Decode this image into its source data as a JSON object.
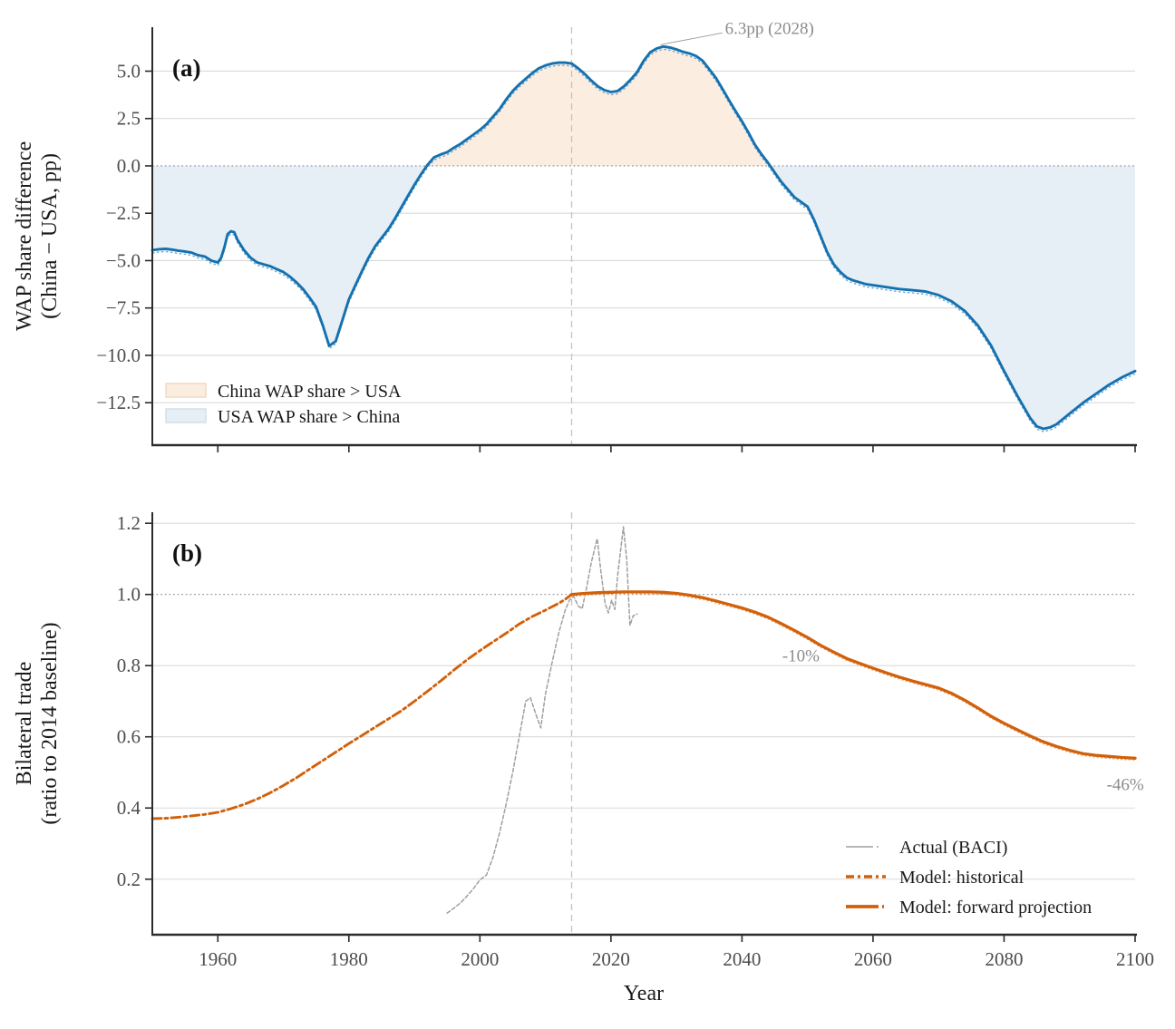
{
  "figure_title": "Two-panel demographic and trade projection figure",
  "palette": {
    "blue_line": "#1571ae",
    "blue_line_companion": "#6fa9d2",
    "fill_china_above": "#fcede1",
    "fill_usa_above": "#e6eef6",
    "fill_china_border": "#f5d8c2",
    "fill_usa_border": "#cfe0ee",
    "orange_line": "#d2600a",
    "orange_companion": "#eaa76f",
    "gray_actual": "#9f9f9f",
    "grid": "#dadada",
    "dotted_baseline": "#909090",
    "vline_2014": "#c4c4c4",
    "spine": "#2b2b2b",
    "annotation_text": "#8c8c8c"
  },
  "chart_data": [
    {
      "id": "panel_a",
      "type": "line",
      "panel_label": "(a)",
      "ylabel_lines": [
        "WAP share difference",
        "(China − USA, pp)"
      ],
      "xlim": [
        1950,
        2100
      ],
      "ylim": [
        -14.74,
        7.32
      ],
      "grid": "horizontal",
      "yticks": [
        {
          "v": 5.0,
          "label": "5.0",
          "grid": true
        },
        {
          "v": 2.5,
          "label": "2.5",
          "grid": true
        },
        {
          "v": 0.0,
          "label": "0.0",
          "grid": false
        },
        {
          "v": -2.5,
          "label": "−2.5",
          "grid": true
        },
        {
          "v": -5.0,
          "label": "−5.0",
          "grid": true
        },
        {
          "v": -7.5,
          "label": "−7.5",
          "grid": true
        },
        {
          "v": -10.0,
          "label": "−10.0",
          "grid": true
        },
        {
          "v": -12.5,
          "label": "−12.5",
          "grid": true
        }
      ],
      "xticks": [
        1960,
        1980,
        2000,
        2020,
        2040,
        2060,
        2080,
        2100
      ],
      "xtick_labels_shown": false,
      "dotted_baseline_value": 0.0,
      "vline_year": 2014,
      "series": [
        {
          "name": "wap-share-difference",
          "style": "blue-hatched",
          "x": [
            1950,
            1951,
            1952,
            1953,
            1954,
            1955,
            1956,
            1957,
            1958,
            1959,
            1960,
            1960.5,
            1961,
            1961.5,
            1962,
            1962.5,
            1963,
            1964,
            1965,
            1966,
            1967,
            1968,
            1969,
            1970,
            1971,
            1972,
            1973,
            1974,
            1975,
            1976,
            1977,
            1978,
            1979,
            1980,
            1981,
            1982,
            1983,
            1984,
            1985,
            1986,
            1987,
            1988,
            1989,
            1990,
            1991,
            1992,
            1993,
            1994,
            1995,
            1996,
            1997,
            1998,
            1999,
            2000,
            2001,
            2002,
            2003,
            2004,
            2005,
            2006,
            2007,
            2008,
            2009,
            2010,
            2011,
            2012,
            2013,
            2014,
            2015,
            2016,
            2017,
            2018,
            2019,
            2020,
            2021,
            2022,
            2023,
            2024,
            2025,
            2026,
            2027,
            2028,
            2029,
            2030,
            2031,
            2032,
            2033,
            2034,
            2035,
            2036,
            2037,
            2038,
            2039,
            2040,
            2041,
            2042,
            2043,
            2044,
            2045,
            2046,
            2047,
            2048,
            2049,
            2050,
            2051,
            2052,
            2053,
            2054,
            2055,
            2056,
            2057,
            2058,
            2059,
            2060,
            2062,
            2064,
            2066,
            2068,
            2070,
            2072,
            2074,
            2076,
            2078,
            2080,
            2082,
            2084,
            2085,
            2086,
            2087,
            2088,
            2090,
            2092,
            2094,
            2096,
            2098,
            2100
          ],
          "y": [
            -4.45,
            -4.4,
            -4.38,
            -4.42,
            -4.48,
            -4.52,
            -4.58,
            -4.72,
            -4.78,
            -5.0,
            -5.1,
            -4.85,
            -4.3,
            -3.6,
            -3.45,
            -3.5,
            -3.9,
            -4.45,
            -4.85,
            -5.1,
            -5.2,
            -5.3,
            -5.45,
            -5.6,
            -5.85,
            -6.15,
            -6.5,
            -6.95,
            -7.45,
            -8.4,
            -9.5,
            -9.25,
            -8.15,
            -7.05,
            -6.3,
            -5.55,
            -4.85,
            -4.25,
            -3.8,
            -3.35,
            -2.8,
            -2.2,
            -1.6,
            -1.0,
            -0.45,
            0.05,
            0.45,
            0.6,
            0.72,
            0.95,
            1.15,
            1.4,
            1.65,
            1.9,
            2.2,
            2.6,
            3.0,
            3.5,
            3.95,
            4.3,
            4.6,
            4.9,
            5.15,
            5.3,
            5.4,
            5.45,
            5.45,
            5.4,
            5.15,
            4.85,
            4.5,
            4.2,
            4.0,
            3.9,
            3.95,
            4.2,
            4.55,
            4.95,
            5.55,
            6.0,
            6.2,
            6.3,
            6.25,
            6.15,
            6.02,
            5.93,
            5.8,
            5.55,
            5.1,
            4.65,
            4.08,
            3.48,
            2.9,
            2.35,
            1.75,
            1.1,
            0.6,
            0.15,
            -0.35,
            -0.85,
            -1.25,
            -1.65,
            -1.9,
            -2.15,
            -2.85,
            -3.7,
            -4.55,
            -5.2,
            -5.6,
            -5.9,
            -6.05,
            -6.15,
            -6.25,
            -6.3,
            -6.4,
            -6.5,
            -6.56,
            -6.63,
            -6.82,
            -7.15,
            -7.66,
            -8.43,
            -9.47,
            -10.83,
            -12.12,
            -13.32,
            -13.75,
            -13.88,
            -13.8,
            -13.64,
            -13.08,
            -12.52,
            -12.04,
            -11.56,
            -11.16,
            -10.83
          ]
        }
      ],
      "legend": [
        {
          "label": "China WAP share > USA",
          "swatch": "china_above"
        },
        {
          "label": "USA WAP share > China",
          "swatch": "usa_above"
        }
      ],
      "annotations": [
        {
          "text": "6.3pp (2028)",
          "year": 2028,
          "value": 6.3,
          "leader": true
        }
      ]
    },
    {
      "id": "panel_b",
      "type": "line",
      "panel_label": "(b)",
      "ylabel_lines": [
        "Bilateral trade",
        "(ratio to 2014 baseline)"
      ],
      "xlabel": "Year",
      "xlim": [
        1950,
        2100
      ],
      "ylim": [
        0.044,
        1.231
      ],
      "grid": "horizontal",
      "yticks": [
        {
          "v": 1.2,
          "label": "1.2",
          "grid": true
        },
        {
          "v": 1.0,
          "label": "1.0",
          "grid": false
        },
        {
          "v": 0.8,
          "label": "0.8",
          "grid": true
        },
        {
          "v": 0.6,
          "label": "0.6",
          "grid": true
        },
        {
          "v": 0.4,
          "label": "0.4",
          "grid": true
        },
        {
          "v": 0.2,
          "label": "0.2",
          "grid": true
        }
      ],
      "xticks": [
        1960,
        1980,
        2000,
        2020,
        2040,
        2060,
        2080,
        2100
      ],
      "xtick_labels_shown": true,
      "xtick_labels": [
        "1960",
        "1980",
        "2000",
        "2020",
        "2040",
        "2060",
        "2080",
        "2100"
      ],
      "dotted_baseline_value": 1.0,
      "vline_year": 2014,
      "series": [
        {
          "name": "actual-baci",
          "legend_label": "Actual (BACI)",
          "style": "gray-dashed",
          "x": [
            1995,
            1996,
            1997,
            1998,
            1999,
            2000,
            2001,
            2002,
            2003,
            2004,
            2005,
            2006,
            2007,
            2007.7,
            2008.5,
            2009.3,
            2010,
            2011,
            2012,
            2013,
            2013.7,
            2014.3,
            2015,
            2015.6,
            2016.3,
            2017,
            2017.9,
            2018.5,
            2019.1,
            2019.6,
            2020.1,
            2020.6,
            2021,
            2021.9,
            2022.4,
            2022.9,
            2023.4,
            2024
          ],
          "y": [
            0.105,
            0.118,
            0.133,
            0.152,
            0.173,
            0.198,
            0.212,
            0.262,
            0.33,
            0.41,
            0.5,
            0.6,
            0.7,
            0.71,
            0.665,
            0.625,
            0.72,
            0.807,
            0.89,
            0.955,
            0.985,
            0.995,
            0.968,
            0.96,
            1.02,
            1.09,
            1.157,
            1.06,
            0.975,
            0.948,
            0.984,
            0.958,
            1.05,
            1.19,
            1.1,
            0.913,
            0.94,
            0.945
          ]
        },
        {
          "name": "model-historical",
          "legend_label": "Model: historical",
          "style": "orange-dashdot",
          "x": [
            1950,
            1952,
            1954,
            1956,
            1958,
            1960,
            1962,
            1964,
            1966,
            1968,
            1970,
            1972,
            1974,
            1976,
            1978,
            1980,
            1982,
            1984,
            1986,
            1988,
            1990,
            1992,
            1994,
            1996,
            1998,
            2000,
            2002,
            2004,
            2006,
            2008,
            2010,
            2012,
            2013,
            2014
          ],
          "y": [
            0.37,
            0.371,
            0.374,
            0.378,
            0.382,
            0.388,
            0.398,
            0.41,
            0.425,
            0.443,
            0.463,
            0.485,
            0.509,
            0.533,
            0.557,
            0.581,
            0.604,
            0.627,
            0.65,
            0.673,
            0.7,
            0.728,
            0.757,
            0.787,
            0.816,
            0.842,
            0.867,
            0.891,
            0.917,
            0.938,
            0.956,
            0.975,
            0.986,
            1.0
          ]
        },
        {
          "name": "model-forward-projection",
          "legend_label": "Model: forward projection",
          "style": "orange-solid",
          "x": [
            2014,
            2016,
            2018,
            2020,
            2022,
            2024,
            2026,
            2028,
            2030,
            2032,
            2034,
            2036,
            2038,
            2040,
            2042,
            2044,
            2046,
            2048,
            2050,
            2052,
            2054,
            2056,
            2058,
            2060,
            2062,
            2064,
            2066,
            2068,
            2070,
            2072,
            2074,
            2076,
            2078,
            2080,
            2082,
            2084,
            2086,
            2088,
            2090,
            2092,
            2094,
            2096,
            2098,
            2100
          ],
          "y": [
            1.0,
            1.003,
            1.005,
            1.006,
            1.007,
            1.007,
            1.007,
            1.006,
            1.003,
            0.998,
            0.991,
            0.982,
            0.972,
            0.962,
            0.95,
            0.936,
            0.918,
            0.899,
            0.879,
            0.857,
            0.838,
            0.82,
            0.806,
            0.793,
            0.78,
            0.768,
            0.757,
            0.747,
            0.737,
            0.722,
            0.703,
            0.681,
            0.658,
            0.638,
            0.62,
            0.602,
            0.586,
            0.573,
            0.562,
            0.553,
            0.548,
            0.545,
            0.542,
            0.54
          ]
        }
      ],
      "legend": [
        {
          "label": "Actual (BACI)",
          "sample": "gray-dashed"
        },
        {
          "label": "Model: historical",
          "sample": "orange-dashdot"
        },
        {
          "label": "Model: forward projection",
          "sample": "orange-solid"
        }
      ],
      "annotations": [
        {
          "text": "-10%",
          "year": 2049,
          "value": 0.83,
          "leader": false
        },
        {
          "text": "-46%",
          "year": 2098.5,
          "value": 0.468,
          "leader": false
        }
      ]
    }
  ]
}
